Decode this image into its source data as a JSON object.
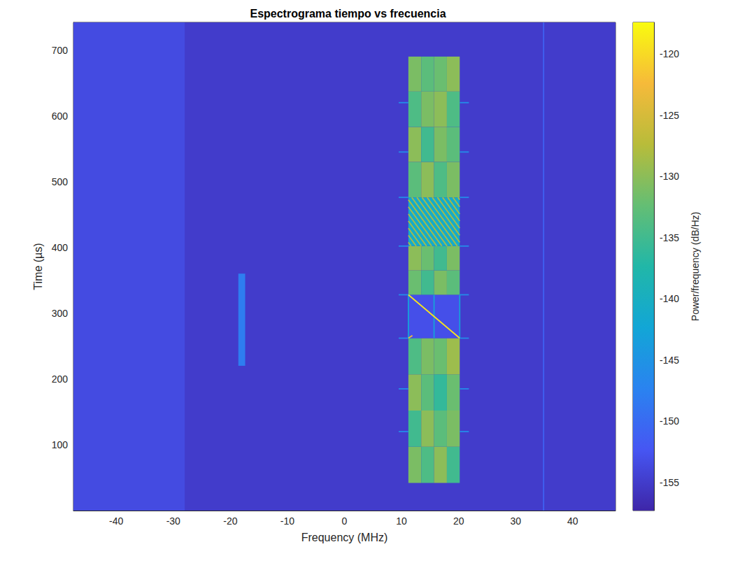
{
  "chart_data": {
    "type": "heatmap",
    "title": "Espectrograma tiempo vs frecuencia",
    "x_label": "Frequency (MHz)",
    "y_label": "Time (µs)",
    "xlim": [
      -47.5,
      47.5
    ],
    "xticks": [
      -40,
      -30,
      -20,
      -10,
      0,
      10,
      20,
      30,
      40
    ],
    "ylim": [
      0,
      742
    ],
    "yticks": [
      100,
      200,
      300,
      400,
      500,
      600,
      700
    ],
    "grid": false,
    "cells": [
      {
        "x": [
          -47.5,
          47.5
        ],
        "y": [
          0,
          742
        ],
        "value": -155
      },
      {
        "x": [
          -47.5,
          -28
        ],
        "y": [
          0,
          742
        ],
        "value": -153.5
      },
      {
        "x": [
          -18.6,
          -17.4
        ],
        "y": [
          220,
          360
        ],
        "value": -148
      },
      {
        "x": [
          11.2,
          13.45
        ],
        "y": [
          42,
          97
        ],
        "value": -131
      },
      {
        "x": [
          13.45,
          15.7
        ],
        "y": [
          42,
          97
        ],
        "value": -134
      },
      {
        "x": [
          15.7,
          17.95
        ],
        "y": [
          42,
          97
        ],
        "value": -130
      },
      {
        "x": [
          17.95,
          20.2
        ],
        "y": [
          42,
          97
        ],
        "value": -135
      },
      {
        "x": [
          11.2,
          13.45
        ],
        "y": [
          97,
          152
        ],
        "value": -135
      },
      {
        "x": [
          13.45,
          15.7
        ],
        "y": [
          97,
          152
        ],
        "value": -130
      },
      {
        "x": [
          15.7,
          17.95
        ],
        "y": [
          97,
          152
        ],
        "value": -133
      },
      {
        "x": [
          17.95,
          20.2
        ],
        "y": [
          97,
          152
        ],
        "value": -131
      },
      {
        "x": [
          11.2,
          13.45
        ],
        "y": [
          152,
          207
        ],
        "value": -130
      },
      {
        "x": [
          13.45,
          15.7
        ],
        "y": [
          152,
          207
        ],
        "value": -133
      },
      {
        "x": [
          15.7,
          17.95
        ],
        "y": [
          152,
          207
        ],
        "value": -136
      },
      {
        "x": [
          17.95,
          20.2
        ],
        "y": [
          152,
          207
        ],
        "value": -132
      },
      {
        "x": [
          11.2,
          13.45
        ],
        "y": [
          207,
          262
        ],
        "value": -134
      },
      {
        "x": [
          13.45,
          15.7
        ],
        "y": [
          207,
          262
        ],
        "value": -131
      },
      {
        "x": [
          15.7,
          17.95
        ],
        "y": [
          207,
          262
        ],
        "value": -132
      },
      {
        "x": [
          17.95,
          20.2
        ],
        "y": [
          207,
          262
        ],
        "value": -129
      },
      {
        "x": [
          11.2,
          20.2
        ],
        "y": [
          262,
          328
        ],
        "value": -153
      },
      {
        "x": [
          11.2,
          13.45
        ],
        "y": [
          328,
          365
        ],
        "value": -132
      },
      {
        "x": [
          13.45,
          15.7
        ],
        "y": [
          328,
          365
        ],
        "value": -135
      },
      {
        "x": [
          15.7,
          17.95
        ],
        "y": [
          328,
          365
        ],
        "value": -131
      },
      {
        "x": [
          17.95,
          20.2
        ],
        "y": [
          328,
          365
        ],
        "value": -133
      },
      {
        "x": [
          11.2,
          13.45
        ],
        "y": [
          365,
          402
        ],
        "value": -130
      },
      {
        "x": [
          13.45,
          15.7
        ],
        "y": [
          365,
          402
        ],
        "value": -132
      },
      {
        "x": [
          15.7,
          17.95
        ],
        "y": [
          365,
          402
        ],
        "value": -135
      },
      {
        "x": [
          17.95,
          20.2
        ],
        "y": [
          365,
          402
        ],
        "value": -131
      },
      {
        "x": [
          11.2,
          20.2
        ],
        "y": [
          402,
          476
        ],
        "value": -141
      },
      {
        "x": [
          11.2,
          13.45
        ],
        "y": [
          476,
          530
        ],
        "value": -133
      },
      {
        "x": [
          13.45,
          15.7
        ],
        "y": [
          476,
          530
        ],
        "value": -130
      },
      {
        "x": [
          15.7,
          17.95
        ],
        "y": [
          476,
          530
        ],
        "value": -134
      },
      {
        "x": [
          17.95,
          20.2
        ],
        "y": [
          476,
          530
        ],
        "value": -131
      },
      {
        "x": [
          11.2,
          13.45
        ],
        "y": [
          530,
          583
        ],
        "value": -130
      },
      {
        "x": [
          13.45,
          15.7
        ],
        "y": [
          530,
          583
        ],
        "value": -135
      },
      {
        "x": [
          15.7,
          17.95
        ],
        "y": [
          530,
          583
        ],
        "value": -131
      },
      {
        "x": [
          17.95,
          20.2
        ],
        "y": [
          530,
          583
        ],
        "value": -133
      },
      {
        "x": [
          11.2,
          13.45
        ],
        "y": [
          583,
          637
        ],
        "value": -134
      },
      {
        "x": [
          13.45,
          15.7
        ],
        "y": [
          583,
          637
        ],
        "value": -131
      },
      {
        "x": [
          15.7,
          17.95
        ],
        "y": [
          583,
          637
        ],
        "value": -130
      },
      {
        "x": [
          17.95,
          20.2
        ],
        "y": [
          583,
          637
        ],
        "value": -134
      },
      {
        "x": [
          11.2,
          13.45
        ],
        "y": [
          637,
          690
        ],
        "value": -131
      },
      {
        "x": [
          13.45,
          15.7
        ],
        "y": [
          637,
          690
        ],
        "value": -133
      },
      {
        "x": [
          15.7,
          17.95
        ],
        "y": [
          637,
          690
        ],
        "value": -132
      },
      {
        "x": [
          17.95,
          20.2
        ],
        "y": [
          637,
          690
        ],
        "value": -130
      }
    ],
    "lines": [
      {
        "x": [
          34.9,
          34.9
        ],
        "y": [
          0,
          742
        ],
        "value": -151
      },
      {
        "x": [
          11.2,
          11.2
        ],
        "y": [
          262,
          328
        ],
        "value": -143
      },
      {
        "x": [
          20.2,
          20.2
        ],
        "y": [
          262,
          328
        ],
        "value": -143
      },
      {
        "x": [
          15.7,
          15.7
        ],
        "y": [
          262,
          328
        ],
        "value": -143
      },
      {
        "x": [
          11.2,
          20.2
        ],
        "y": [
          328,
          262
        ],
        "value": -119
      },
      {
        "x": [
          11.2,
          11.9
        ],
        "y": [
          262,
          266
        ],
        "value": -122
      },
      {
        "x": [
          9.5,
          11.2
        ],
        "y": [
          120,
          120
        ],
        "value": -146
      },
      {
        "x": [
          20.2,
          21.8
        ],
        "y": [
          120,
          120
        ],
        "value": -146
      },
      {
        "x": [
          9.5,
          11.2
        ],
        "y": [
          185,
          185
        ],
        "value": -146
      },
      {
        "x": [
          20.2,
          21.8
        ],
        "y": [
          185,
          185
        ],
        "value": -146
      },
      {
        "x": [
          9.5,
          11.2
        ],
        "y": [
          262,
          262
        ],
        "value": -146
      },
      {
        "x": [
          20.2,
          21.8
        ],
        "y": [
          262,
          262
        ],
        "value": -146
      },
      {
        "x": [
          9.5,
          11.2
        ],
        "y": [
          328,
          328
        ],
        "value": -146
      },
      {
        "x": [
          20.2,
          21.8
        ],
        "y": [
          328,
          328
        ],
        "value": -146
      },
      {
        "x": [
          9.5,
          11.2
        ],
        "y": [
          402,
          402
        ],
        "value": -146
      },
      {
        "x": [
          20.2,
          21.8
        ],
        "y": [
          402,
          402
        ],
        "value": -146
      },
      {
        "x": [
          9.5,
          11.2
        ],
        "y": [
          476,
          476
        ],
        "value": -146
      },
      {
        "x": [
          20.2,
          21.8
        ],
        "y": [
          476,
          476
        ],
        "value": -146
      },
      {
        "x": [
          9.5,
          11.2
        ],
        "y": [
          545,
          545
        ],
        "value": -146
      },
      {
        "x": [
          20.2,
          21.8
        ],
        "y": [
          545,
          545
        ],
        "value": -146
      },
      {
        "x": [
          9.5,
          11.2
        ],
        "y": [
          620,
          620
        ],
        "value": -146
      },
      {
        "x": [
          20.2,
          21.8
        ],
        "y": [
          620,
          620
        ],
        "value": -146
      },
      {
        "x": [
          11.2,
          11.67
        ],
        "y": [
          407.6,
          402
        ],
        "value": -128
      },
      {
        "x": [
          11.2,
          12.57
        ],
        "y": [
          418.4,
          402
        ],
        "value": -128
      },
      {
        "x": [
          11.2,
          13.47
        ],
        "y": [
          429.2,
          402
        ],
        "value": -128
      },
      {
        "x": [
          11.2,
          14.37
        ],
        "y": [
          440,
          402
        ],
        "value": -128
      },
      {
        "x": [
          11.2,
          15.27
        ],
        "y": [
          450.8,
          402
        ],
        "value": -128
      },
      {
        "x": [
          11.2,
          16.17
        ],
        "y": [
          461.6,
          402
        ],
        "value": -128
      },
      {
        "x": [
          11.2,
          17.07
        ],
        "y": [
          472.4,
          402
        ],
        "value": -128
      },
      {
        "x": [
          11.8,
          17.97
        ],
        "y": [
          476,
          402
        ],
        "value": -128
      },
      {
        "x": [
          12.7,
          18.87
        ],
        "y": [
          476,
          402
        ],
        "value": -128
      },
      {
        "x": [
          13.6,
          19.77
        ],
        "y": [
          476,
          402
        ],
        "value": -128
      },
      {
        "x": [
          14.5,
          20.2
        ],
        "y": [
          476,
          407.6
        ],
        "value": -128
      },
      {
        "x": [
          15.4,
          20.2
        ],
        "y": [
          476,
          418.4
        ],
        "value": -128
      },
      {
        "x": [
          16.3,
          20.2
        ],
        "y": [
          476,
          429.2
        ],
        "value": -128
      },
      {
        "x": [
          17.2,
          20.2
        ],
        "y": [
          476,
          440
        ],
        "value": -128
      },
      {
        "x": [
          18.1,
          20.2
        ],
        "y": [
          476,
          450.8
        ],
        "value": -128
      },
      {
        "x": [
          19.0,
          20.2
        ],
        "y": [
          476,
          461.6
        ],
        "value": -128
      },
      {
        "x": [
          19.9,
          20.2
        ],
        "y": [
          476,
          472.4
        ],
        "value": -128
      }
    ],
    "colorbar": {
      "label": "Power/frequency (dB/Hz)",
      "range": [
        -157.3,
        -117.4
      ],
      "ticks": [
        -155,
        -150,
        -145,
        -140,
        -135,
        -130,
        -125,
        -120
      ]
    }
  }
}
